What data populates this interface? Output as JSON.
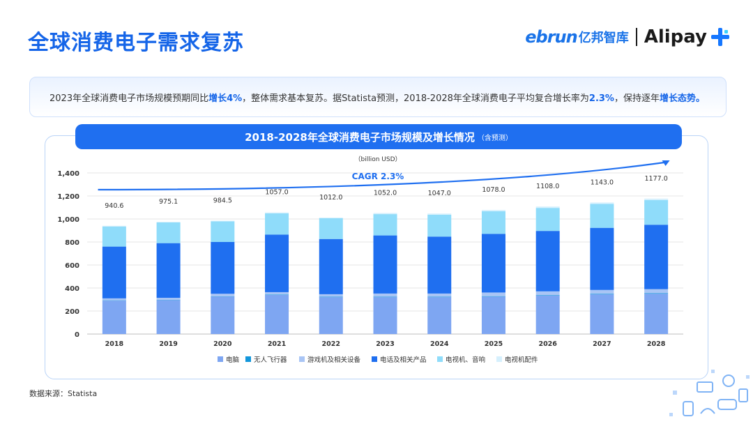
{
  "header": {
    "title": "全球消费电子需求复苏",
    "logo_ebrun": "ebrun",
    "logo_cn": "亿邦智库",
    "logo_alipay": "Alipay"
  },
  "summary": {
    "t1": "2023年全球消费电子市场规模预期同比",
    "h1": "增长4%",
    "t2": "，整体需求基本复苏。据Statista预测，2018-2028年全球消费电子平均复合增长率为",
    "h2": "2.3%",
    "t3": "，保持逐年",
    "h3": "增长态势。"
  },
  "chart_header": {
    "main": "2018-2028年全球消费电子市场规模及增长情况",
    "sub": "（含预测）"
  },
  "source": "数据来源：Statista",
  "chart_data": {
    "type": "bar",
    "stacked": true,
    "unit_label": "（billion USD）",
    "annotation": "CAGR 2.3%",
    "categories": [
      "2018",
      "2019",
      "2020",
      "2021",
      "2022",
      "2023",
      "2024",
      "2025",
      "2026",
      "2027",
      "2028"
    ],
    "totals": [
      "940.6",
      "975.1",
      "984.5",
      "1057.0",
      "1012.0",
      "1052.0",
      "1047.0",
      "1078.0",
      "1108.0",
      "1143.0",
      "1177.0"
    ],
    "ylim": [
      0,
      1400
    ],
    "yticks": [
      "0",
      "200",
      "400",
      "600",
      "800",
      "1,000",
      "1,200",
      "1,400"
    ],
    "grid": true,
    "legend_position": "bottom",
    "series": [
      {
        "name": "电脑",
        "color": "#7ea6f2",
        "values": [
          290,
          295,
          325,
          340,
          320,
          320,
          320,
          325,
          335,
          345,
          350
        ]
      },
      {
        "name": "无人飞行器",
        "color": "#1296db",
        "values": [
          3,
          3,
          3,
          4,
          4,
          4,
          4,
          4,
          4,
          5,
          5
        ]
      },
      {
        "name": "游戏机及相关设备",
        "color": "#a9c5f5",
        "values": [
          17,
          17,
          22,
          20,
          22,
          28,
          28,
          32,
          32,
          33,
          35
        ]
      },
      {
        "name": "电话及相关产品",
        "color": "#1f6ff0",
        "values": [
          450,
          475,
          450,
          500,
          480,
          505,
          495,
          510,
          525,
          540,
          560
        ]
      },
      {
        "name": "电视机、音响",
        "color": "#8fdcfa",
        "values": [
          175,
          180,
          180,
          185,
          180,
          185,
          190,
          197,
          200,
          208,
          215
        ]
      },
      {
        "name": "电视机配件",
        "color": "#d6f0fd",
        "values": [
          5.6,
          5.1,
          4.5,
          8,
          6,
          10,
          10,
          10,
          12,
          12,
          12
        ]
      }
    ]
  }
}
